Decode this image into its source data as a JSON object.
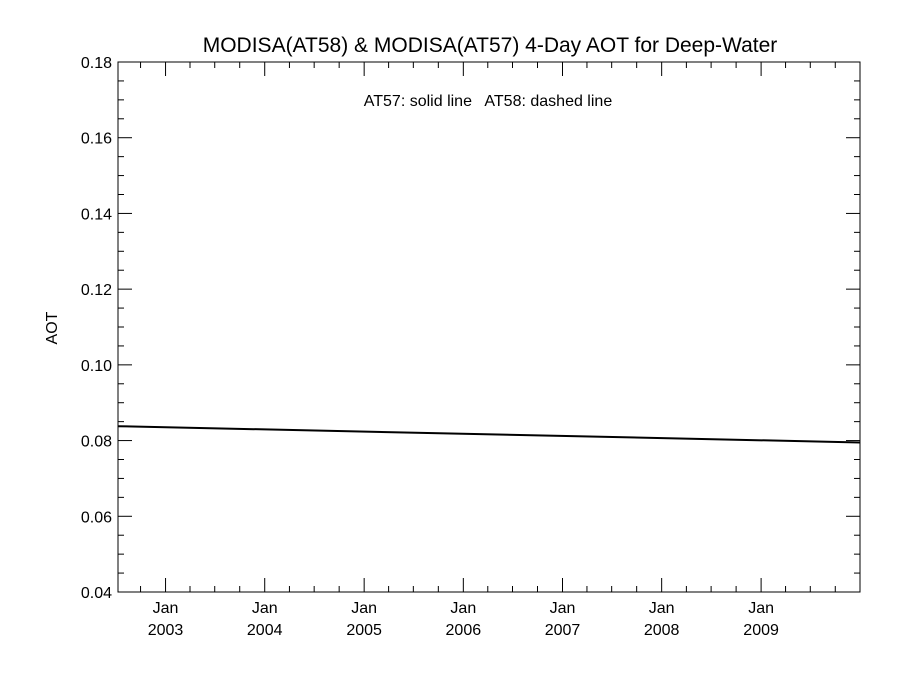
{
  "chart_data": {
    "type": "line",
    "title": "MODISA(AT58) & MODISA(AT57) 4-Day AOT for Deep-Water",
    "ylabel": "AOT",
    "xlabel": "",
    "annotation": "AT57: solid line   AT58: dashed line",
    "xlim": [
      "2002-07-10",
      "2009-12-31"
    ],
    "ylim": [
      0.04,
      0.18
    ],
    "grid": false,
    "x_ticks": [
      {
        "date": "2003-01-01",
        "line1": "Jan",
        "line2": "2003"
      },
      {
        "date": "2004-01-01",
        "line1": "Jan",
        "line2": "2004"
      },
      {
        "date": "2005-01-01",
        "line1": "Jan",
        "line2": "2005"
      },
      {
        "date": "2006-01-01",
        "line1": "Jan",
        "line2": "2006"
      },
      {
        "date": "2007-01-01",
        "line1": "Jan",
        "line2": "2007"
      },
      {
        "date": "2008-01-01",
        "line1": "Jan",
        "line2": "2008"
      },
      {
        "date": "2009-01-01",
        "line1": "Jan",
        "line2": "2009"
      }
    ],
    "y_ticks": [
      "0.04",
      "0.06",
      "0.08",
      "0.10",
      "0.12",
      "0.14",
      "0.16",
      "0.18"
    ],
    "series": [
      {
        "name": "AT57",
        "style": "solid",
        "color": "#000000",
        "x": [
          "2002-07-10",
          "2009-12-31"
        ],
        "y": [
          0.0838,
          0.0795
        ]
      }
    ]
  }
}
